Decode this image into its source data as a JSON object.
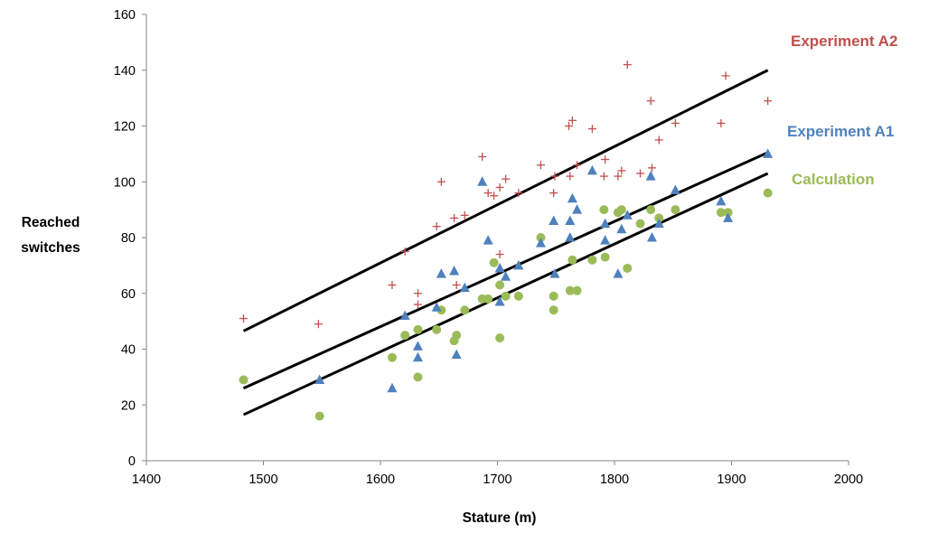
{
  "chart_data": {
    "type": "scatter",
    "xlabel": "Stature (m)",
    "ylabel_lines": [
      "Reached",
      "switches"
    ],
    "xlim": [
      1400,
      2000
    ],
    "ylim": [
      0,
      160
    ],
    "x_ticks": [
      1400,
      1500,
      1600,
      1700,
      1800,
      1900,
      2000
    ],
    "y_ticks": [
      0,
      20,
      40,
      60,
      80,
      100,
      120,
      140,
      160
    ],
    "grid": false,
    "legend_placement": "right, labels beside trend lines",
    "series": [
      {
        "name": "Experiment A2",
        "color": "#C0504D",
        "marker": "plus",
        "points": [
          [
            1483,
            51
          ],
          [
            1547,
            49
          ],
          [
            1610,
            63
          ],
          [
            1621,
            75
          ],
          [
            1632,
            56
          ],
          [
            1632,
            60
          ],
          [
            1648,
            84
          ],
          [
            1652,
            100
          ],
          [
            1663,
            87
          ],
          [
            1665,
            63
          ],
          [
            1672,
            88
          ],
          [
            1687,
            109
          ],
          [
            1692,
            96
          ],
          [
            1697,
            95
          ],
          [
            1702,
            98
          ],
          [
            1702,
            74
          ],
          [
            1707,
            101
          ],
          [
            1718,
            96
          ],
          [
            1737,
            106
          ],
          [
            1748,
            96
          ],
          [
            1749,
            102
          ],
          [
            1761,
            120
          ],
          [
            1762,
            102
          ],
          [
            1764,
            122
          ],
          [
            1768,
            106
          ],
          [
            1781,
            119
          ],
          [
            1791,
            102
          ],
          [
            1792,
            108
          ],
          [
            1803,
            102
          ],
          [
            1806,
            104
          ],
          [
            1811,
            142
          ],
          [
            1822,
            103
          ],
          [
            1831,
            129
          ],
          [
            1832,
            105
          ],
          [
            1838,
            115
          ],
          [
            1852,
            121
          ],
          [
            1891,
            121
          ],
          [
            1895,
            138
          ],
          [
            1931,
            129
          ]
        ],
        "trend": {
          "x": [
            1483,
            1931
          ],
          "y": [
            46.5,
            140
          ]
        }
      },
      {
        "name": "Experiment A1",
        "color": "#4F81BD",
        "marker": "triangle",
        "points": [
          [
            1548,
            29
          ],
          [
            1610,
            26
          ],
          [
            1621,
            52
          ],
          [
            1632,
            41
          ],
          [
            1632,
            37
          ],
          [
            1648,
            55
          ],
          [
            1652,
            67
          ],
          [
            1663,
            68
          ],
          [
            1665,
            38
          ],
          [
            1672,
            62
          ],
          [
            1687,
            100
          ],
          [
            1692,
            79
          ],
          [
            1702,
            57
          ],
          [
            1702,
            69
          ],
          [
            1707,
            66
          ],
          [
            1718,
            70
          ],
          [
            1737,
            78
          ],
          [
            1748,
            86
          ],
          [
            1749,
            67
          ],
          [
            1762,
            86
          ],
          [
            1762,
            80
          ],
          [
            1764,
            94
          ],
          [
            1768,
            90
          ],
          [
            1781,
            104
          ],
          [
            1792,
            79
          ],
          [
            1792,
            85
          ],
          [
            1803,
            67
          ],
          [
            1806,
            83
          ],
          [
            1811,
            88
          ],
          [
            1831,
            102
          ],
          [
            1832,
            80
          ],
          [
            1838,
            85
          ],
          [
            1852,
            97
          ],
          [
            1891,
            93
          ],
          [
            1897,
            87
          ],
          [
            1931,
            110
          ]
        ],
        "trend": {
          "x": [
            1483,
            1931
          ],
          "y": [
            26,
            110.5
          ]
        }
      },
      {
        "name": "Calculation",
        "color": "#9BBB59",
        "marker": "circle",
        "points": [
          [
            1483,
            29
          ],
          [
            1548,
            16
          ],
          [
            1610,
            37
          ],
          [
            1621,
            45
          ],
          [
            1632,
            30
          ],
          [
            1632,
            47
          ],
          [
            1648,
            47
          ],
          [
            1652,
            54
          ],
          [
            1663,
            43
          ],
          [
            1665,
            45
          ],
          [
            1672,
            54
          ],
          [
            1687,
            58
          ],
          [
            1692,
            58
          ],
          [
            1697,
            71
          ],
          [
            1702,
            44
          ],
          [
            1702,
            63
          ],
          [
            1707,
            59
          ],
          [
            1718,
            59
          ],
          [
            1737,
            80
          ],
          [
            1748,
            54
          ],
          [
            1748,
            59
          ],
          [
            1762,
            61
          ],
          [
            1764,
            72
          ],
          [
            1768,
            61
          ],
          [
            1781,
            72
          ],
          [
            1791,
            90
          ],
          [
            1792,
            73
          ],
          [
            1803,
            89
          ],
          [
            1806,
            90
          ],
          [
            1811,
            69
          ],
          [
            1822,
            85
          ],
          [
            1831,
            90
          ],
          [
            1838,
            87
          ],
          [
            1852,
            90
          ],
          [
            1891,
            89
          ],
          [
            1897,
            89
          ],
          [
            1931,
            96
          ]
        ],
        "trend": {
          "x": [
            1483,
            1931
          ],
          "y": [
            16.5,
            103
          ]
        }
      }
    ]
  }
}
